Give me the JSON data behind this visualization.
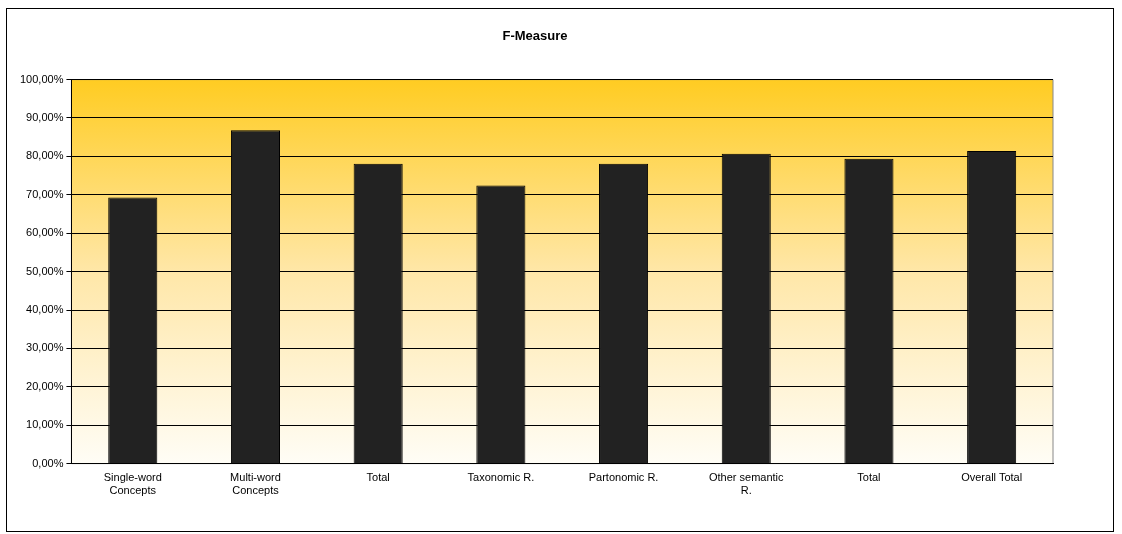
{
  "chart_data": {
    "type": "bar",
    "title": "F-Measure",
    "categories": [
      "Single-word Concepts",
      "Multi-word Concepts",
      "Total",
      "Taxonomic R.",
      "Partonomic R.",
      "Other semantic R.",
      "Total",
      "Overall Total"
    ],
    "values": [
      69.3,
      86.8,
      78.1,
      72.4,
      78.1,
      80.7,
      79.4,
      81.4
    ],
    "color": "#222222",
    "ylim": [
      0,
      100
    ],
    "yticks": [
      {
        "value": 0,
        "label": "0,00%"
      },
      {
        "value": 10,
        "label": "10,00%"
      },
      {
        "value": 20,
        "label": "20,00%"
      },
      {
        "value": 30,
        "label": "30,00%"
      },
      {
        "value": 40,
        "label": "40,00%"
      },
      {
        "value": 50,
        "label": "50,00%"
      },
      {
        "value": 60,
        "label": "60,00%"
      },
      {
        "value": 70,
        "label": "70,00%"
      },
      {
        "value": 80,
        "label": "80,00%"
      },
      {
        "value": 90,
        "label": "90,00%"
      },
      {
        "value": 100,
        "label": "100,00%"
      }
    ],
    "grid": "y"
  }
}
